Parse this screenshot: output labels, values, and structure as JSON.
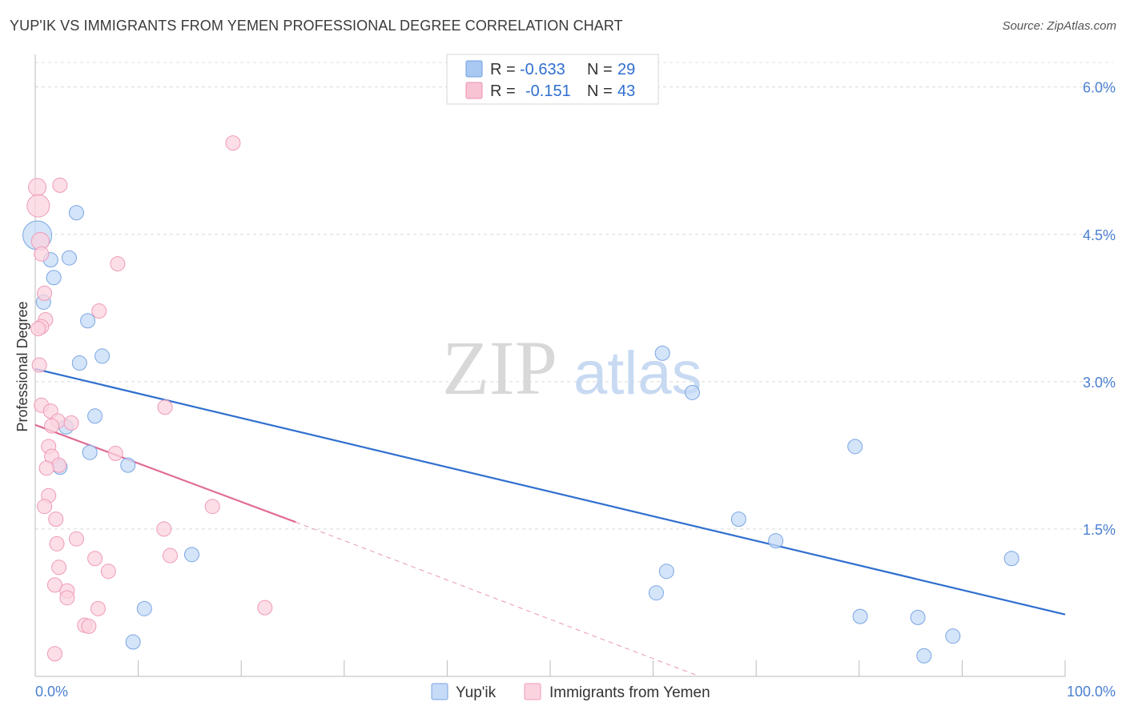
{
  "title": "YUP'IK VS IMMIGRANTS FROM YEMEN PROFESSIONAL DEGREE CORRELATION CHART",
  "source": "Source: ZipAtlas.com",
  "watermark": {
    "zip": "ZIP",
    "atlas": "atlas"
  },
  "legend": {
    "rows": [
      {
        "r_label": "R =",
        "r_value": "-0.633",
        "n_label": "N =",
        "n_value": "29",
        "color": "#a9c8f2",
        "stroke": "#6f9fe0"
      },
      {
        "r_label": "R =",
        "r_value": "-0.151",
        "n_label": "N =",
        "n_value": "43",
        "color": "#f8c3d3",
        "stroke": "#ec8fb0"
      }
    ]
  },
  "bottom_legend": [
    {
      "label": "Yup'ik",
      "color": "#c6dbf7",
      "stroke": "#7aa6e3"
    },
    {
      "label": "Immigrants from Yemen",
      "color": "#fbd3df",
      "stroke": "#ef9ab7"
    }
  ],
  "chart_data": {
    "type": "scatter",
    "title": "YUP'IK VS IMMIGRANTS FROM YEMEN PROFESSIONAL DEGREE CORRELATION CHART",
    "xlabel": "",
    "ylabel": "Professional Degree",
    "xlim": [
      0,
      100
    ],
    "ylim": [
      0,
      6.25
    ],
    "x_tick_labels": [
      {
        "value": 0,
        "label": "0.0%"
      },
      {
        "value": 100,
        "label": "100.0%"
      }
    ],
    "y_tick_labels": [
      {
        "value": 1.5,
        "label": "1.5%"
      },
      {
        "value": 3.0,
        "label": "3.0%"
      },
      {
        "value": 4.5,
        "label": "4.5%"
      },
      {
        "value": 6.0,
        "label": "6.0%"
      }
    ],
    "grid": true,
    "series": [
      {
        "name": "Yup'ik",
        "color": "#7aa6e3",
        "fill": "#c6dbf7",
        "trend": {
          "x": [
            0,
            100
          ],
          "y": [
            3.13,
            0.63
          ],
          "color": "#2f6fcf"
        },
        "points": [
          [
            0.2,
            4.49,
            18
          ],
          [
            4.0,
            4.72,
            9
          ],
          [
            1.5,
            4.24,
            9
          ],
          [
            3.3,
            4.26,
            9
          ],
          [
            1.8,
            4.06,
            9
          ],
          [
            0.8,
            3.81,
            9
          ],
          [
            5.1,
            3.62,
            9
          ],
          [
            6.5,
            3.26,
            9
          ],
          [
            4.3,
            3.19,
            9
          ],
          [
            5.8,
            2.65,
            9
          ],
          [
            3.0,
            2.54,
            9
          ],
          [
            5.3,
            2.28,
            9
          ],
          [
            2.4,
            2.13,
            9
          ],
          [
            9.0,
            2.15,
            9
          ],
          [
            15.2,
            1.24,
            9
          ],
          [
            10.6,
            0.69,
            9
          ],
          [
            9.5,
            0.35,
            9
          ],
          [
            60.9,
            3.29,
            9
          ],
          [
            63.8,
            2.89,
            9
          ],
          [
            79.6,
            2.34,
            9
          ],
          [
            68.3,
            1.6,
            9
          ],
          [
            71.9,
            1.38,
            9
          ],
          [
            61.3,
            1.07,
            9
          ],
          [
            60.3,
            0.85,
            9
          ],
          [
            80.1,
            0.61,
            9
          ],
          [
            85.7,
            0.6,
            9
          ],
          [
            89.1,
            0.41,
            9
          ],
          [
            86.3,
            0.21,
            9
          ],
          [
            94.8,
            1.2,
            9
          ]
        ]
      },
      {
        "name": "Immigrants from Yemen",
        "color": "#ef9ab7",
        "fill": "#fbd3df",
        "trend": {
          "x": [
            0,
            25.3
          ],
          "y": [
            2.56,
            1.57
          ],
          "color": "#e06b94"
        },
        "trend_extension": {
          "x": [
            25.3,
            64.5
          ],
          "y": [
            1.57,
            0.0
          ]
        },
        "points": [
          [
            0.2,
            4.98,
            11
          ],
          [
            0.3,
            4.79,
            14
          ],
          [
            2.4,
            5.0,
            9
          ],
          [
            19.2,
            5.43,
            9
          ],
          [
            0.5,
            4.43,
            11
          ],
          [
            0.6,
            4.3,
            9
          ],
          [
            8.0,
            4.2,
            9
          ],
          [
            0.9,
            3.9,
            9
          ],
          [
            6.2,
            3.72,
            9
          ],
          [
            1.0,
            3.63,
            9
          ],
          [
            0.6,
            3.56,
            9
          ],
          [
            0.3,
            3.54,
            9
          ],
          [
            0.4,
            3.17,
            9
          ],
          [
            0.6,
            2.76,
            9
          ],
          [
            1.5,
            2.7,
            9
          ],
          [
            12.6,
            2.74,
            9
          ],
          [
            2.2,
            2.6,
            9
          ],
          [
            3.5,
            2.58,
            9
          ],
          [
            1.6,
            2.55,
            9
          ],
          [
            1.3,
            2.34,
            9
          ],
          [
            1.6,
            2.24,
            9
          ],
          [
            7.8,
            2.27,
            9
          ],
          [
            2.3,
            2.15,
            9
          ],
          [
            1.1,
            2.12,
            9
          ],
          [
            1.3,
            1.84,
            9
          ],
          [
            0.9,
            1.73,
            9
          ],
          [
            17.2,
            1.73,
            9
          ],
          [
            2.0,
            1.6,
            9
          ],
          [
            12.5,
            1.5,
            9
          ],
          [
            4.0,
            1.4,
            9
          ],
          [
            2.1,
            1.35,
            9
          ],
          [
            13.1,
            1.23,
            9
          ],
          [
            5.8,
            1.2,
            9
          ],
          [
            2.3,
            1.11,
            9
          ],
          [
            7.1,
            1.07,
            9
          ],
          [
            1.9,
            0.93,
            9
          ],
          [
            3.1,
            0.87,
            9
          ],
          [
            3.1,
            0.8,
            9
          ],
          [
            6.1,
            0.69,
            9
          ],
          [
            22.3,
            0.7,
            9
          ],
          [
            4.8,
            0.52,
            9
          ],
          [
            5.2,
            0.51,
            9
          ],
          [
            1.9,
            0.23,
            9
          ]
        ]
      }
    ]
  }
}
